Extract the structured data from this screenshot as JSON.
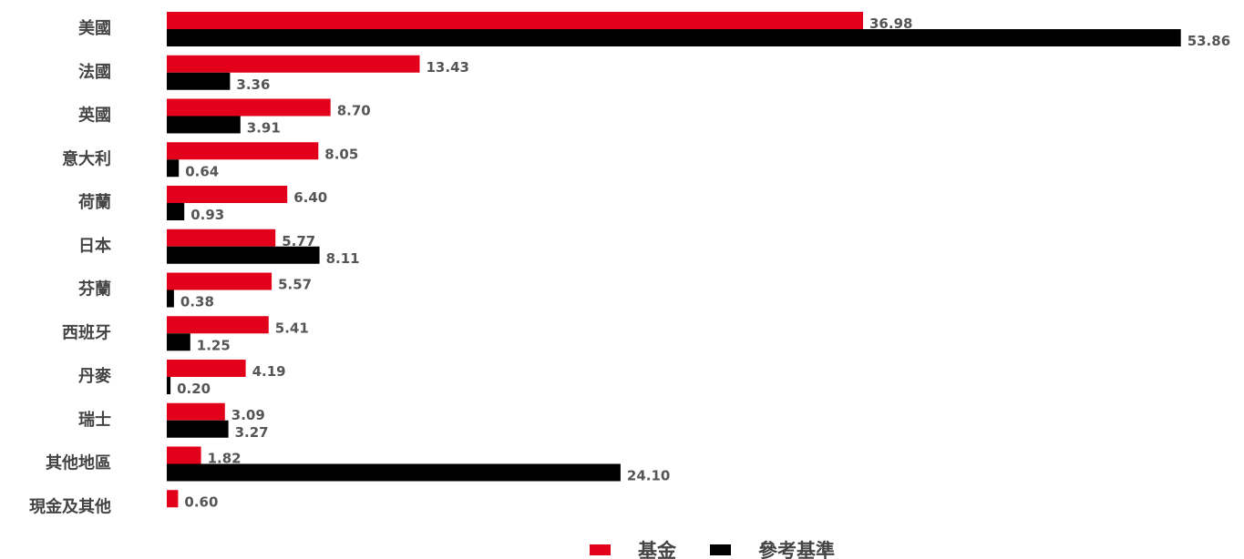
{
  "chart_data": {
    "type": "bar",
    "orientation": "horizontal",
    "categories": [
      "美國",
      "法國",
      "英國",
      "意大利",
      "荷蘭",
      "日本",
      "芬蘭",
      "西班牙",
      "丹麥",
      "瑞士",
      "其他地區",
      "現金及其他"
    ],
    "series": [
      {
        "name": "基金",
        "color": "#e2001a",
        "values": [
          36.98,
          13.43,
          8.7,
          8.05,
          6.4,
          5.77,
          5.57,
          5.41,
          4.19,
          3.09,
          1.82,
          0.6
        ],
        "labels": [
          "36.98",
          "13.43",
          "8.70",
          "8.05",
          "6.40",
          "5.77",
          "5.57",
          "5.41",
          "4.19",
          "3.09",
          "1.82",
          "0.60"
        ]
      },
      {
        "name": "參考基準",
        "color": "#000000",
        "values": [
          53.86,
          3.36,
          3.91,
          0.64,
          0.93,
          8.11,
          0.38,
          1.25,
          0.2,
          3.27,
          24.1,
          null
        ],
        "labels": [
          "53.86",
          "3.36",
          "3.91",
          "0.64",
          "0.93",
          "8.11",
          "0.38",
          "1.25",
          "0.20",
          "3.27",
          "24.10",
          null
        ]
      }
    ],
    "xlim": [
      0,
      53.86
    ],
    "grid": false,
    "legend_position": "bottom-center"
  }
}
